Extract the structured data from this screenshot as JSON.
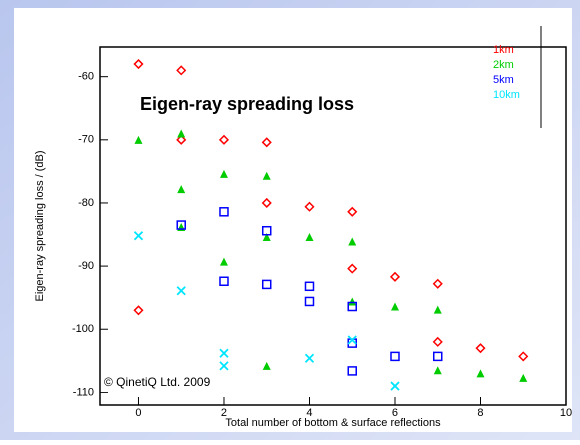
{
  "chart_data": {
    "type": "scatter",
    "title": "Eigen-ray spreading loss",
    "x_label": "Total number of bottom & surface reflections",
    "y_label": "Eigen-ray spreading loss / (dB)",
    "copyright": "© QinetiQ Ltd. 2009",
    "xlim": [
      -0.9,
      10
    ],
    "xticks": [
      0,
      2,
      4,
      6,
      8,
      10
    ],
    "ylim": [
      -112,
      -55.3
    ],
    "yticks": [
      -60,
      -70,
      -80,
      -90,
      -100,
      -110
    ],
    "legend": "top-right",
    "series": [
      {
        "name": "1km",
        "color": "#ff0000",
        "marker": "diamond",
        "x": [
          0,
          1,
          1,
          2,
          3,
          3,
          4,
          5,
          5,
          6,
          7,
          0,
          7,
          8,
          9
        ],
        "values": [
          -58,
          -59,
          -70,
          -70,
          -70.4,
          -80,
          -80.6,
          -81.4,
          -90.4,
          -91.7,
          -92.8,
          -97,
          -102,
          -103,
          -104.3
        ]
      },
      {
        "name": "2km",
        "color": "#00cc00",
        "marker": "triangle",
        "x": [
          0,
          1,
          1,
          1,
          2,
          2,
          3,
          3,
          4,
          5,
          5,
          6,
          7,
          3,
          7,
          8,
          9
        ],
        "values": [
          -70,
          -69,
          -77.8,
          -83.8,
          -75.4,
          -89.3,
          -75.7,
          -85.4,
          -85.4,
          -86.1,
          -95.6,
          -96.4,
          -96.9,
          -105.8,
          -106.5,
          -107,
          -107.7
        ]
      },
      {
        "name": "5km",
        "color": "#0000ff",
        "marker": "square",
        "x": [
          1,
          2,
          2,
          3,
          3,
          4,
          4,
          5,
          5,
          6,
          7,
          5
        ],
        "values": [
          -83.5,
          -81.4,
          -92.4,
          -84.4,
          -92.9,
          -93.2,
          -95.6,
          -96.4,
          -102.2,
          -104.3,
          -104.3,
          -106.6
        ]
      },
      {
        "name": "10km",
        "color": "#00e5ff",
        "marker": "cross",
        "x": [
          0,
          1,
          2,
          4,
          5,
          6,
          2
        ],
        "values": [
          -85.2,
          -93.9,
          -103.8,
          -104.6,
          -101.7,
          -109,
          -105.8
        ]
      }
    ]
  }
}
